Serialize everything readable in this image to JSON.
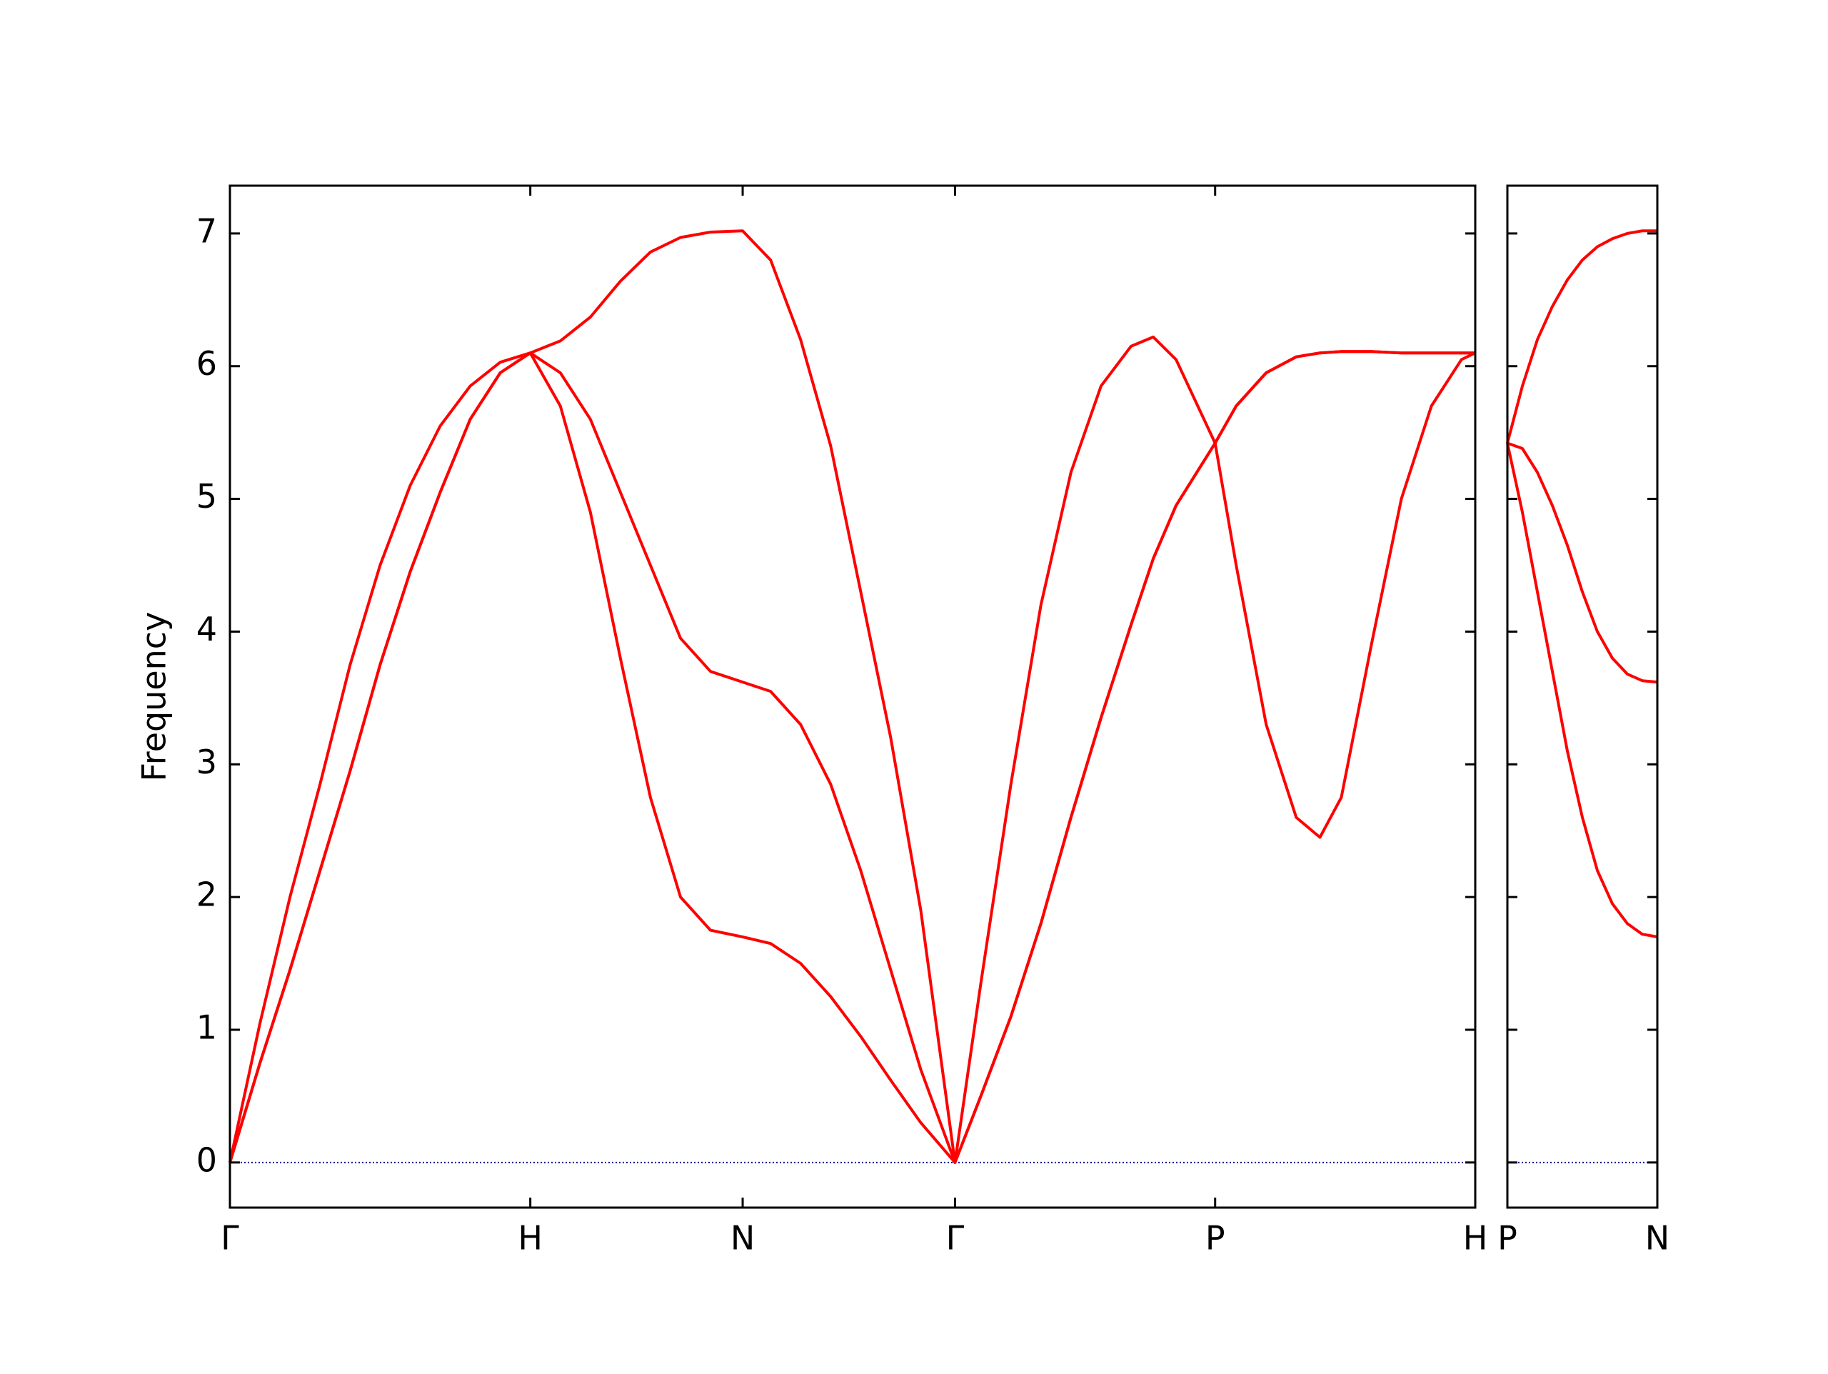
{
  "chart_data": [
    {
      "type": "line",
      "ylabel": "Frequency",
      "xlim": [
        0,
        4.146
      ],
      "ylim": [
        -0.34,
        7.36
      ],
      "xticks": [
        {
          "value": 0,
          "label": "Γ"
        },
        {
          "value": 1,
          "label": "H"
        },
        {
          "value": 1.707,
          "label": "N"
        },
        {
          "value": 2.414,
          "label": "Γ"
        },
        {
          "value": 3.28,
          "label": "P"
        },
        {
          "value": 4.146,
          "label": "H"
        }
      ],
      "yticks": [
        0,
        1,
        2,
        3,
        4,
        5,
        6,
        7
      ],
      "show_yticklabels": true,
      "hlines": [
        {
          "y": 0,
          "color": "#00008b"
        }
      ],
      "x": [
        0,
        0.1,
        0.2,
        0.3,
        0.4,
        0.5,
        0.6,
        0.7,
        0.8,
        0.9,
        1.0,
        1.1,
        1.2,
        1.3,
        1.4,
        1.5,
        1.6,
        1.707,
        1.8,
        1.9,
        2.0,
        2.1,
        2.2,
        2.3,
        2.414,
        2.5,
        2.6,
        2.7,
        2.8,
        2.9,
        3.0,
        3.074,
        3.15,
        3.28,
        3.35,
        3.45,
        3.55,
        3.629,
        3.7,
        3.8,
        3.9,
        4.0,
        4.1,
        4.146
      ],
      "series": [
        {
          "color": "#ff0000",
          "values": [
            0,
            0.75,
            1.45,
            2.2,
            2.95,
            3.75,
            4.45,
            5.05,
            5.6,
            5.95,
            6.1,
            5.7,
            4.9,
            3.8,
            2.75,
            2.0,
            1.75,
            1.7,
            1.65,
            1.5,
            1.25,
            0.95,
            0.62,
            0.3,
            0,
            0.5,
            1.1,
            1.8,
            2.6,
            3.35,
            4.05,
            4.55,
            4.95,
            5.42,
            4.5,
            3.3,
            2.6,
            2.45,
            2.75,
            3.9,
            5.0,
            5.7,
            6.05,
            6.1
          ]
        },
        {
          "color": "#ff0000",
          "values": [
            0,
            0.75,
            1.45,
            2.2,
            2.95,
            3.75,
            4.45,
            5.05,
            5.6,
            5.95,
            6.1,
            5.95,
            5.6,
            5.05,
            4.5,
            3.95,
            3.7,
            3.62,
            3.55,
            3.3,
            2.85,
            2.2,
            1.45,
            0.7,
            0,
            0.5,
            1.1,
            1.8,
            2.6,
            3.35,
            4.05,
            4.55,
            4.95,
            5.42,
            5.7,
            5.95,
            6.07,
            6.1,
            6.11,
            6.11,
            6.1,
            6.1,
            6.1,
            6.1
          ]
        },
        {
          "color": "#ff0000",
          "values": [
            0,
            1.05,
            2.0,
            2.85,
            3.75,
            4.5,
            5.1,
            5.55,
            5.85,
            6.03,
            6.1,
            6.19,
            6.37,
            6.64,
            6.86,
            6.97,
            7.01,
            7.02,
            6.8,
            6.2,
            5.4,
            4.3,
            3.2,
            1.9,
            0,
            1.35,
            2.85,
            4.2,
            5.2,
            5.85,
            6.15,
            6.22,
            6.05,
            5.42,
            5.7,
            5.95,
            6.07,
            6.1,
            6.11,
            6.11,
            6.1,
            6.1,
            6.1,
            6.1
          ]
        }
      ]
    },
    {
      "type": "line",
      "xlim": [
        0,
        0.5
      ],
      "ylim": [
        -0.34,
        7.36
      ],
      "xticks": [
        {
          "value": 0,
          "label": "P"
        },
        {
          "value": 0.5,
          "label": "N"
        }
      ],
      "yticks": [
        0,
        1,
        2,
        3,
        4,
        5,
        6,
        7
      ],
      "show_yticklabels": false,
      "hlines": [
        {
          "y": 0,
          "color": "#00008b"
        }
      ],
      "x": [
        0,
        0.05,
        0.1,
        0.15,
        0.2,
        0.25,
        0.3,
        0.35,
        0.4,
        0.45,
        0.5
      ],
      "series": [
        {
          "color": "#ff0000",
          "values": [
            5.42,
            4.9,
            4.3,
            3.7,
            3.1,
            2.6,
            2.2,
            1.95,
            1.8,
            1.72,
            1.7
          ]
        },
        {
          "color": "#ff0000",
          "values": [
            5.42,
            5.38,
            5.2,
            4.95,
            4.65,
            4.3,
            4.0,
            3.8,
            3.68,
            3.63,
            3.62
          ]
        },
        {
          "color": "#ff0000",
          "values": [
            5.42,
            5.85,
            6.2,
            6.45,
            6.65,
            6.8,
            6.9,
            6.96,
            7.0,
            7.02,
            7.02
          ]
        }
      ]
    }
  ]
}
